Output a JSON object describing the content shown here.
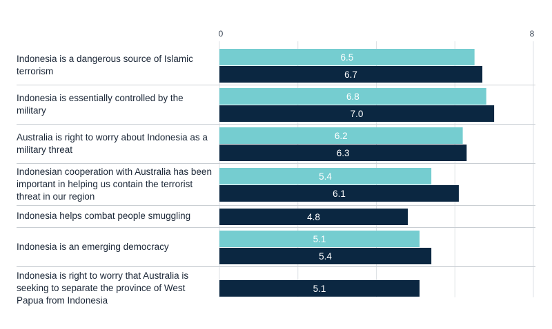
{
  "chart_data": {
    "type": "bar",
    "orientation": "horizontal",
    "xlim": [
      0,
      8
    ],
    "x_ticks": [
      "0",
      "8"
    ],
    "grid": true,
    "colors": {
      "series_light": "#75cdd0",
      "series_dark": "#0b2741",
      "label_on_light": "#ffffff",
      "label_on_dark": "#ffffff",
      "separator": "#c9ced3",
      "grid": "#dde1e5"
    },
    "categories": [
      "Indonesia is a dangerous source of Islamic terrorism",
      "Indonesia is essentially controlled by the military",
      "Australia is right to worry about Indonesia as a military threat",
      "Indonesian cooperation with Australia has been important in helping us contain the terrorist threat in our region",
      "Indonesia helps combat people smuggling",
      "Indonesia is an emerging democracy",
      "Indonesia is right to worry that Australia is seeking to separate the province of West Papua from Indonesia"
    ],
    "series": [
      {
        "color": "#75cdd0",
        "values": [
          6.5,
          6.8,
          6.2,
          5.4,
          null,
          5.1,
          null
        ],
        "labels": [
          "6.5",
          "6.8",
          "6.2",
          "5.4",
          "",
          "5.1",
          ""
        ]
      },
      {
        "color": "#0b2741",
        "values": [
          6.7,
          7.0,
          6.3,
          6.1,
          4.8,
          5.4,
          5.1
        ],
        "labels": [
          "6.7",
          "7.0",
          "6.3",
          "6.1",
          "4.8",
          "5.4",
          "5.1"
        ]
      }
    ]
  }
}
